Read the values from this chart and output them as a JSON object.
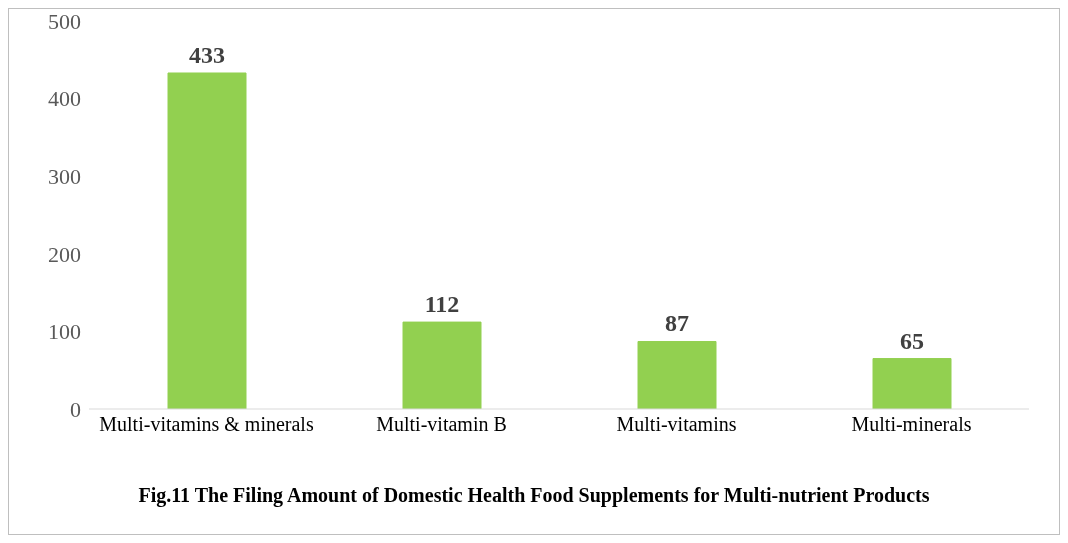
{
  "chart_data": {
    "type": "bar",
    "title": "Fig.11 The Filing Amount of Domestic Health Food Supplements for Multi-nutrient Products",
    "categories": [
      "Multi-vitamins & minerals",
      "Multi-vitamin B",
      "Multi-vitamins",
      "Multi-minerals"
    ],
    "values": [
      433,
      112,
      87,
      65
    ],
    "color": "#92d050",
    "ylim": [
      0,
      500
    ],
    "yticks": [
      0,
      100,
      200,
      300,
      400,
      500
    ],
    "data_labels": true
  }
}
